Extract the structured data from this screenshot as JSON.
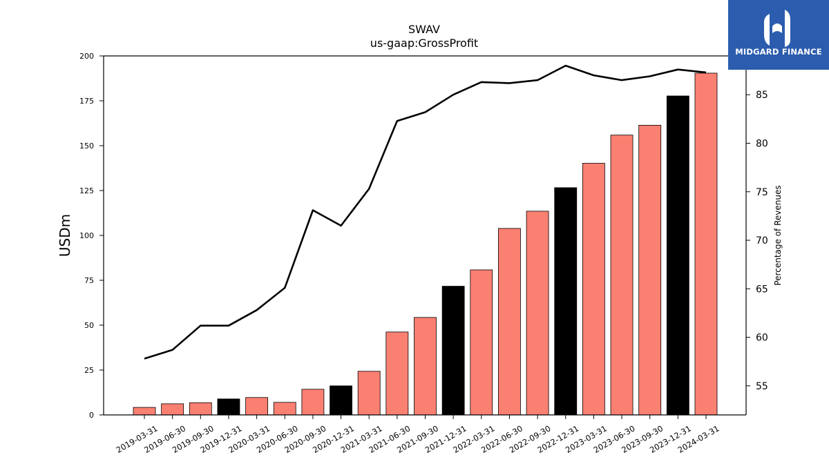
{
  "chart_data": {
    "type": "bar",
    "title": "SWAV",
    "subtitle": "us-gaap:GrossProfit",
    "ylabel": "USDm",
    "y2label": "Percentage of Revenues",
    "ylim": [
      0,
      200
    ],
    "y2lim": [
      52,
      89
    ],
    "yticks": [
      0,
      25,
      50,
      75,
      100,
      125,
      150,
      175,
      200
    ],
    "y2ticks": [
      55,
      60,
      65,
      70,
      75,
      80,
      85
    ],
    "categories": [
      "2019-03-31",
      "2019-06-30",
      "2019-09-30",
      "2019-12-31",
      "2020-03-31",
      "2020-06-30",
      "2020-09-30",
      "2020-12-31",
      "2021-03-31",
      "2021-06-30",
      "2021-09-30",
      "2021-12-31",
      "2022-03-31",
      "2022-06-30",
      "2022-09-30",
      "2022-12-31",
      "2023-03-31",
      "2023-06-30",
      "2023-09-30",
      "2023-12-31",
      "2024-03-31"
    ],
    "series": [
      {
        "values": [
          4.2,
          6.2,
          6.8,
          8.9,
          9.7,
          7.0,
          14.3,
          16.2,
          24.3,
          46.2,
          54.3,
          71.7,
          80.8,
          103.9,
          113.5,
          126.6,
          140.2,
          155.9,
          161.4,
          177.7,
          190.4
        ],
        "colors": [
          "#fa8072",
          "#fa8072",
          "#fa8072",
          "#000000",
          "#fa8072",
          "#fa8072",
          "#fa8072",
          "#000000",
          "#fa8072",
          "#fa8072",
          "#fa8072",
          "#000000",
          "#fa8072",
          "#fa8072",
          "#fa8072",
          "#000000",
          "#fa8072",
          "#fa8072",
          "#fa8072",
          "#000000",
          "#fa8072"
        ]
      },
      {
        "axis": "right",
        "type": "line",
        "color": "#000000",
        "values": [
          57.8,
          58.7,
          61.2,
          61.2,
          62.8,
          65.1,
          73.1,
          71.5,
          75.3,
          82.3,
          83.2,
          85.0,
          86.3,
          86.2,
          86.5,
          88.0,
          87.0,
          86.5,
          86.9,
          87.6,
          87.3
        ]
      }
    ]
  },
  "logo": {
    "text": "MIDGARD FINANCE",
    "bg": "#2b5cae"
  }
}
